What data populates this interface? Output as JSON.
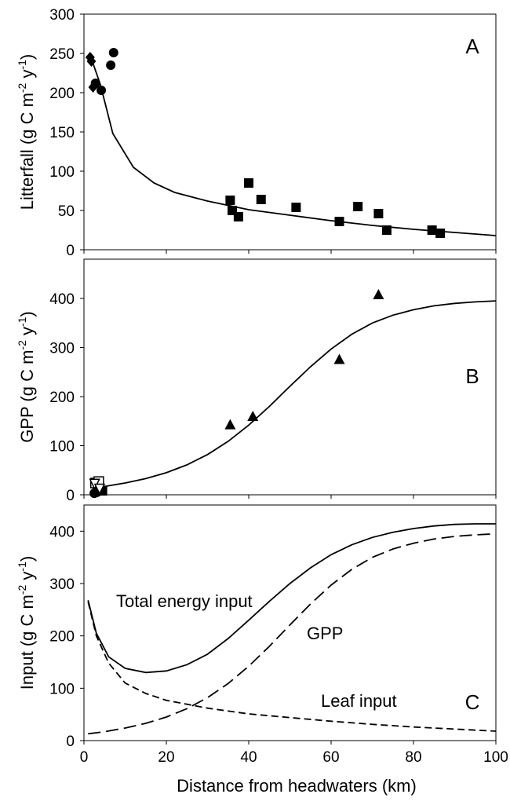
{
  "chart_data": [
    {
      "panel": "A",
      "type": "scatter",
      "ylabel": "Litterfall (g C m-2 y-1)",
      "ylabel_parts": {
        "main": "Litterfall (g C m",
        "exp1": "-2",
        "mid": " y",
        "exp2": "-1",
        "end": ")"
      },
      "ylim": [
        0,
        300
      ],
      "yticks": [
        "0",
        "50",
        "100",
        "150",
        "200",
        "250",
        "300"
      ],
      "xlim": [
        0,
        100
      ],
      "series": [
        {
          "marker": "diamond",
          "points": [
            [
              1.5,
              245
            ],
            [
              1.8,
              240
            ],
            [
              2.2,
              207
            ]
          ]
        },
        {
          "marker": "circle",
          "points": [
            [
              2.8,
              212
            ],
            [
              4.2,
              203
            ],
            [
              6.5,
              235
            ],
            [
              7.2,
              251
            ]
          ]
        },
        {
          "marker": "square",
          "points": [
            [
              35.5,
              63
            ],
            [
              36,
              50
            ],
            [
              37.5,
              42
            ],
            [
              40,
              85
            ],
            [
              43,
              64
            ],
            [
              51.5,
              54
            ],
            [
              62,
              36
            ],
            [
              66.5,
              55
            ],
            [
              71.5,
              46
            ],
            [
              73.5,
              25
            ],
            [
              84.5,
              25
            ],
            [
              86.5,
              21
            ]
          ]
        }
      ],
      "fit_line": [
        [
          1.5,
          248
        ],
        [
          4,
          210
        ],
        [
          7,
          148
        ],
        [
          12,
          105
        ],
        [
          17,
          85
        ],
        [
          22,
          73
        ],
        [
          30,
          62
        ],
        [
          40,
          51
        ],
        [
          50,
          44
        ],
        [
          60,
          37
        ],
        [
          70,
          31
        ],
        [
          80,
          26
        ],
        [
          90,
          22
        ],
        [
          100,
          18
        ]
      ]
    },
    {
      "panel": "B",
      "type": "scatter",
      "ylabel": "GPP (g C m-2 y-1)",
      "ylabel_parts": {
        "main": "GPP (g C m",
        "exp1": "-2",
        "mid": " y",
        "exp2": "-1",
        "end": ")"
      },
      "ylim": [
        0,
        480
      ],
      "yticks": [
        "0",
        "100",
        "200",
        "300",
        "400"
      ],
      "xlim": [
        0,
        100
      ],
      "series": [
        {
          "marker": "triangle",
          "points": [
            [
              35.5,
              143
            ],
            [
              41,
              160
            ],
            [
              62,
              276
            ],
            [
              71.5,
              408
            ]
          ]
        },
        {
          "marker": "circle",
          "points": [
            [
              2.5,
              3
            ],
            [
              3.2,
              5
            ]
          ]
        },
        {
          "marker": "square",
          "points": [
            [
              3.8,
              9
            ],
            [
              4.5,
              8
            ]
          ]
        },
        {
          "marker": "open-square",
          "points": [
            [
              2.8,
              24
            ],
            [
              3.6,
              27
            ]
          ]
        },
        {
          "marker": "open-triangle-down",
          "points": [
            [
              2.6,
              22
            ],
            [
              3.8,
              12
            ]
          ]
        }
      ],
      "fit_line": [
        [
          2,
          13
        ],
        [
          5,
          17
        ],
        [
          10,
          24
        ],
        [
          15,
          33
        ],
        [
          20,
          45
        ],
        [
          25,
          61
        ],
        [
          30,
          82
        ],
        [
          35,
          109
        ],
        [
          40,
          142
        ],
        [
          45,
          180
        ],
        [
          50,
          221
        ],
        [
          55,
          261
        ],
        [
          60,
          297
        ],
        [
          65,
          327
        ],
        [
          70,
          350
        ],
        [
          75,
          366
        ],
        [
          80,
          377
        ],
        [
          85,
          385
        ],
        [
          90,
          390
        ],
        [
          95,
          393
        ],
        [
          100,
          395
        ]
      ]
    },
    {
      "panel": "C",
      "type": "line",
      "ylabel": "Input (g C m-2 y-1)",
      "ylabel_parts": {
        "main": "Input (g C m",
        "exp1": "-2",
        "mid": " y",
        "exp2": "-1",
        "end": ")"
      },
      "ylim": [
        0,
        450
      ],
      "yticks": [
        "0",
        "100",
        "200",
        "300",
        "400"
      ],
      "xlim": [
        0,
        100
      ],
      "xticks": [
        "0",
        "20",
        "40",
        "60",
        "80",
        "100"
      ],
      "xlabel": "Distance from headwaters (km)",
      "series": [
        {
          "name": "Total energy input",
          "style": "solid",
          "points": [
            [
              1,
              268
            ],
            [
              3,
              205
            ],
            [
              6,
              160
            ],
            [
              10,
              138
            ],
            [
              15,
              130
            ],
            [
              20,
              133
            ],
            [
              25,
              145
            ],
            [
              30,
              165
            ],
            [
              35,
              195
            ],
            [
              40,
              230
            ],
            [
              45,
              266
            ],
            [
              50,
              300
            ],
            [
              55,
              330
            ],
            [
              60,
              355
            ],
            [
              65,
              374
            ],
            [
              70,
              388
            ],
            [
              75,
              398
            ],
            [
              80,
              405
            ],
            [
              85,
              410
            ],
            [
              90,
              413
            ],
            [
              95,
              414
            ],
            [
              100,
              414
            ]
          ]
        },
        {
          "name": "GPP",
          "style": "dash",
          "points": [
            [
              1,
              13
            ],
            [
              5,
              17
            ],
            [
              10,
              24
            ],
            [
              15,
              33
            ],
            [
              20,
              45
            ],
            [
              25,
              61
            ],
            [
              30,
              82
            ],
            [
              35,
              109
            ],
            [
              40,
              142
            ],
            [
              45,
              180
            ],
            [
              50,
              221
            ],
            [
              55,
              261
            ],
            [
              60,
              297
            ],
            [
              65,
              327
            ],
            [
              70,
              350
            ],
            [
              75,
              366
            ],
            [
              80,
              377
            ],
            [
              85,
              385
            ],
            [
              90,
              390
            ],
            [
              95,
              393
            ],
            [
              100,
              395
            ]
          ]
        },
        {
          "name": "Leaf input",
          "style": "shortdash",
          "points": [
            [
              1,
              265
            ],
            [
              3,
              200
            ],
            [
              6,
              148
            ],
            [
              10,
              110
            ],
            [
              15,
              90
            ],
            [
              20,
              77
            ],
            [
              30,
              62
            ],
            [
              40,
              51
            ],
            [
              50,
              44
            ],
            [
              60,
              37
            ],
            [
              70,
              31
            ],
            [
              80,
              26
            ],
            [
              90,
              22
            ],
            [
              100,
              18
            ]
          ]
        }
      ]
    }
  ],
  "panel_labels": [
    "A",
    "B",
    "C"
  ],
  "annotations": {
    "total": "Total energy input",
    "gpp": "GPP",
    "leaf": "Leaf input"
  },
  "xlabel": "Distance from headwaters (km)"
}
